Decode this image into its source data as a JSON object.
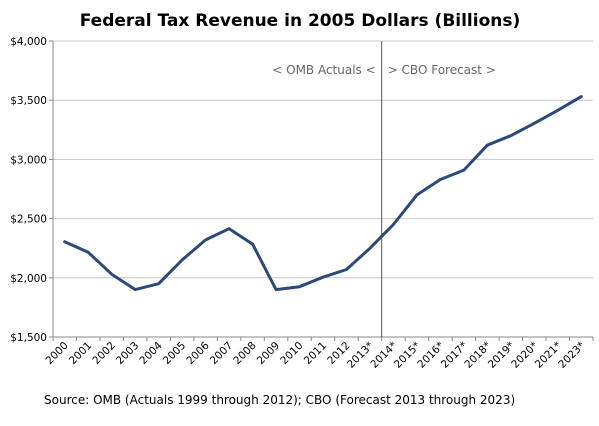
{
  "chart_data": {
    "type": "line",
    "title": "Federal Tax Revenue in 2005 Dollars (Billions)",
    "xlabel": "",
    "ylabel": "",
    "categories": [
      "2000",
      "2001",
      "2002",
      "2003",
      "2004",
      "2005",
      "2006",
      "2007",
      "2008",
      "2009",
      "2010",
      "2011",
      "2012",
      "2013*",
      "2014*",
      "2015*",
      "2016*",
      "2017*",
      "2018*",
      "2019*",
      "2020*",
      "2021*",
      "2023*"
    ],
    "series": [
      {
        "values": [
          2305,
          2215,
          2030,
          1900,
          1950,
          2150,
          2320,
          2415,
          2285,
          1900,
          1925,
          2005,
          2070,
          2250,
          2450,
          2700,
          2830,
          2910,
          3120,
          3200,
          3305,
          3415,
          3530
        ]
      }
    ],
    "ylim": [
      1500,
      4000
    ],
    "yticks": [
      1500,
      2000,
      2500,
      3000,
      3500,
      4000
    ],
    "ytick_labels": [
      "$1,500",
      "$2,000",
      "$2,500",
      "$3,000",
      "$3,500",
      "$4,000"
    ],
    "divider_after": "2013*",
    "annotations": [
      "< OMB Actuals <",
      "> CBO Forecast >"
    ],
    "source": "Source: OMB (Actuals 1999 through 2012); CBO (Forecast 2013 through 2023)",
    "line_color": "#2b4a7c",
    "grid": "horizontal",
    "legend": "none"
  }
}
